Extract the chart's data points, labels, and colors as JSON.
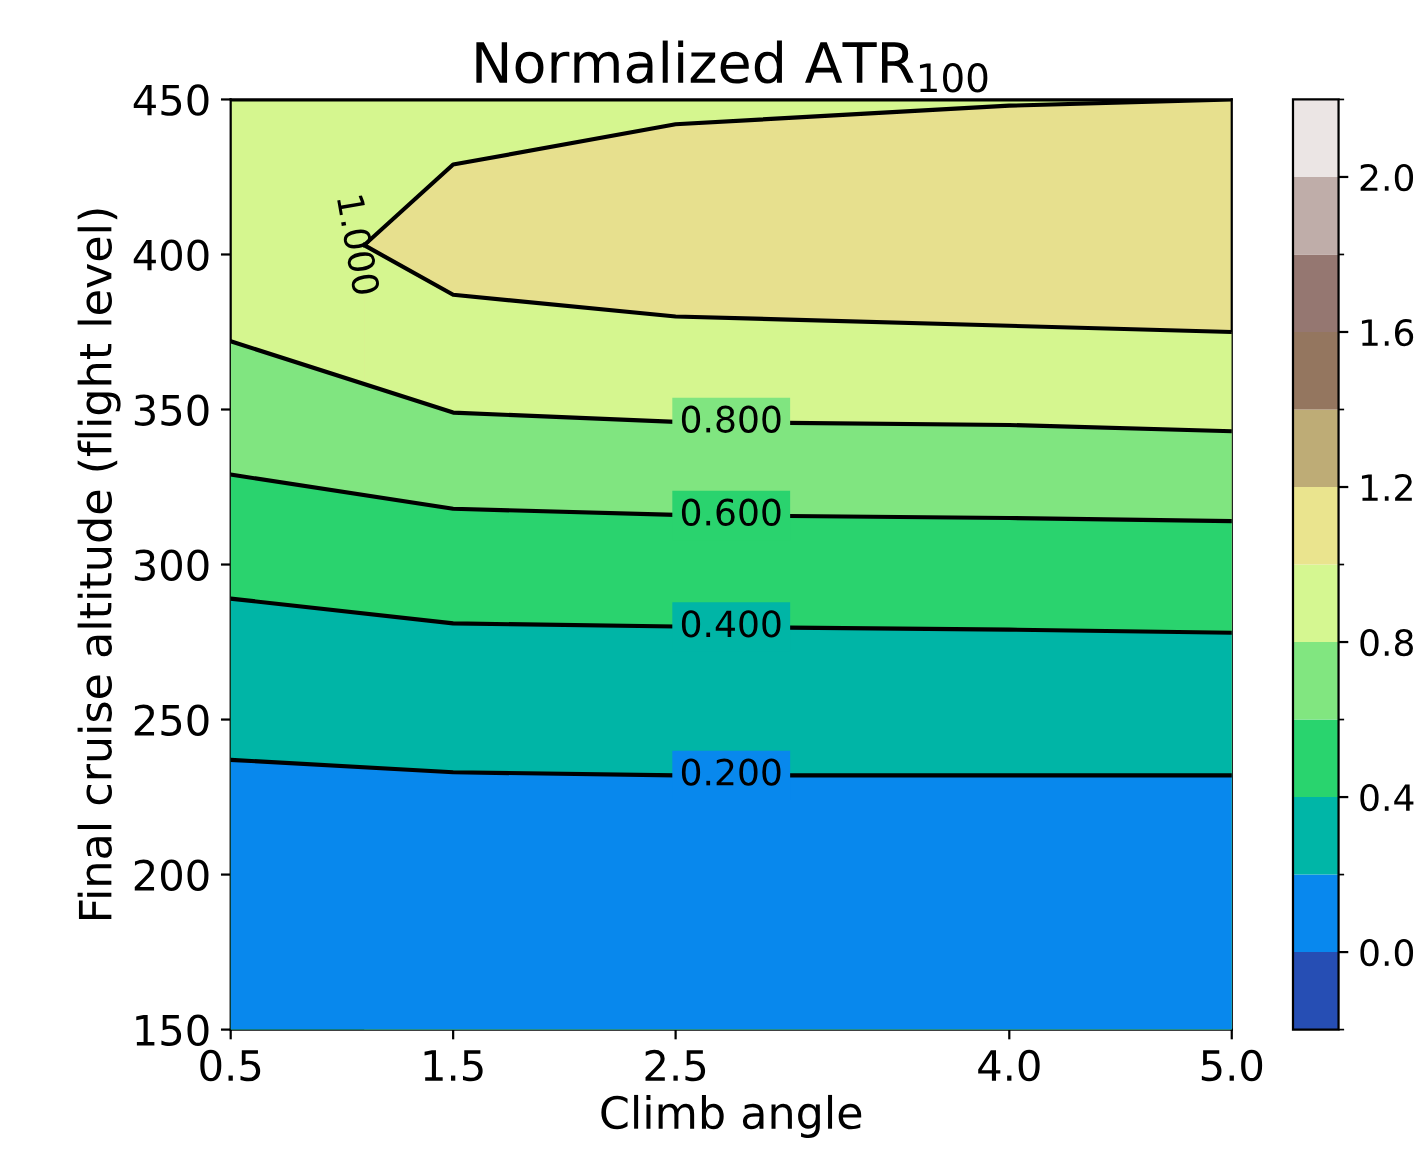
{
  "chart_data": {
    "type": "area",
    "title": "Normalized ATR$_{100}$",
    "xlabel": "Climb angle",
    "ylabel": "Final cruise altitude (flight level)",
    "series": [
      {
        "color": "#d5f68f",
        "x": [
          0.5,
          5.0
        ],
        "values": [
          450,
          450
        ]
      },
      {
        "name": "1.000",
        "color": "#e7e08e",
        "x": [
          1.1,
          1.5,
          2.5,
          4.0,
          5.0
        ],
        "values": [
          403,
          429,
          442,
          448,
          450
        ]
      },
      {
        "color": "#d5f68f",
        "x": [
          1.1,
          1.5,
          2.5,
          4.0,
          5.0
        ],
        "values": [
          403,
          387,
          380,
          377,
          375
        ]
      },
      {
        "name": "0.800",
        "color": "#80e580",
        "x": [
          0.5,
          1.5,
          2.5,
          4.0,
          5.0
        ],
        "values": [
          372,
          349,
          346,
          345,
          343
        ]
      },
      {
        "name": "0.600",
        "color": "#2ad36e",
        "x": [
          0.5,
          1.5,
          2.5,
          4.0,
          5.0
        ],
        "values": [
          329,
          318,
          316,
          315,
          314
        ]
      },
      {
        "name": "0.400",
        "color": "#00b5a6",
        "x": [
          0.5,
          1.5,
          2.5,
          4.0,
          5.0
        ],
        "values": [
          289,
          281,
          280,
          279,
          278
        ]
      },
      {
        "name": "0.200",
        "color": "#0888ed",
        "x": [
          0.5,
          1.5,
          2.5,
          4.0,
          5.0
        ],
        "values": [
          237,
          233,
          232,
          232,
          232
        ]
      }
    ],
    "clim": [
      -0.2,
      2.2
    ],
    "cticks": [
      {
        "value": 0,
        "label": "0.0"
      },
      0.4,
      0.8,
      1.2,
      1.6,
      {
        "value": 2,
        "label": "2.0"
      }
    ],
    "xlim": [
      0.5,
      5.0
    ],
    "xticks": [
      0.5,
      1.5,
      2.5,
      {
        "value": 4.0,
        "label": "4.0"
      },
      {
        "value": 5.0,
        "label": "5.0"
      }
    ],
    "ylim": [
      150,
      450
    ],
    "yticks": [
      150,
      200,
      250,
      300,
      350,
      400,
      450
    ]
  }
}
